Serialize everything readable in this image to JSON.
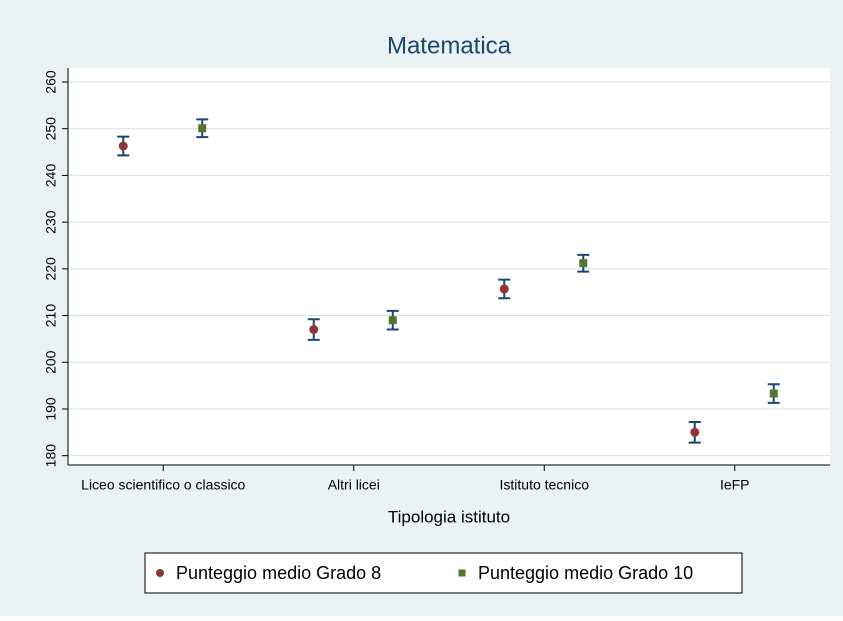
{
  "chart_data": {
    "type": "errorbar",
    "title": "Matematica",
    "x_label": "Tipologia istituto",
    "categories": [
      "Liceo scientifico o classico",
      "Altri licei",
      "Istituto tecnico",
      "IeFP"
    ],
    "series": [
      {
        "name": "Punteggio medio Grado 8",
        "color": "#90353b",
        "marker": "circle",
        "values": [
          246.3,
          207.0,
          215.7,
          185.0
        ],
        "errors": [
          2.0,
          2.2,
          2.0,
          2.2
        ]
      },
      {
        "name": "Punteggio medio Grado 10",
        "color": "#55752f",
        "marker": "square",
        "values": [
          250.1,
          209.0,
          221.2,
          193.3
        ],
        "errors": [
          1.9,
          2.0,
          1.8,
          2.0
        ]
      }
    ],
    "error_color": "#1a476f",
    "ylim": [
      178,
      263
    ],
    "yticks": [
      180,
      190,
      200,
      210,
      220,
      230,
      240,
      250,
      260
    ],
    "grid": true,
    "legend": "bottom"
  }
}
